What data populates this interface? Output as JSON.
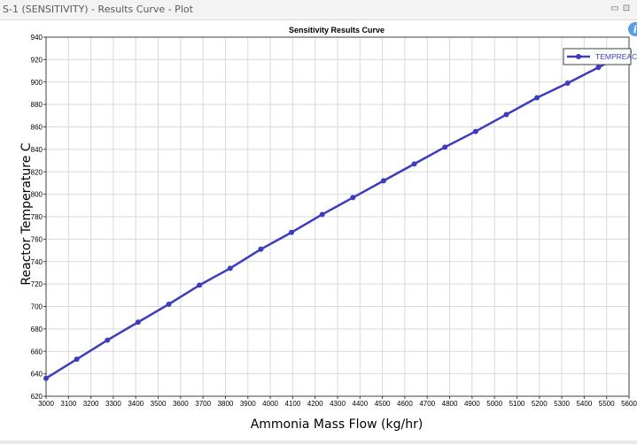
{
  "window": {
    "title": "S-1 (SENSITIVITY) - Results Curve - Plot",
    "restore_glyph": "▭",
    "maximize_glyph": "⊡"
  },
  "info_icon": {
    "glyph": "i",
    "icon": "info-icon",
    "color": "#5aa0e0"
  },
  "chart_data": {
    "type": "line",
    "title": "Sensitivity Results Curve",
    "xlabel": "Ammonia Mass Flow (kg/hr)",
    "ylabel": "Reactor Temperature C",
    "xlim": [
      3000,
      5600
    ],
    "ylim": [
      620,
      940
    ],
    "x_ticks": [
      3000,
      3100,
      3200,
      3300,
      3400,
      3500,
      3600,
      3700,
      3800,
      3900,
      4000,
      4100,
      4200,
      4300,
      4400,
      4500,
      4600,
      4700,
      4800,
      4900,
      5000,
      5100,
      5200,
      5300,
      5400,
      5500,
      5600
    ],
    "y_ticks": [
      620,
      640,
      660,
      680,
      700,
      720,
      740,
      760,
      780,
      800,
      820,
      840,
      860,
      880,
      900,
      920,
      940
    ],
    "grid": true,
    "legend_position": "top-right",
    "series": [
      {
        "name": "TEMPREAC C",
        "color": "#3c3cbf",
        "x": [
          3000,
          3136.8,
          3273.7,
          3410.5,
          3547.4,
          3684.2,
          3821.1,
          3957.9,
          4094.7,
          4231.6,
          4368.4,
          4505.3,
          4642.1,
          4778.9,
          4915.8,
          5052.6,
          5189.5,
          5326.3,
          5463.2,
          5600
        ],
        "y": [
          636,
          653,
          670,
          686,
          702,
          719,
          734,
          751,
          766,
          782,
          797,
          812,
          827,
          842,
          856,
          871,
          886,
          899,
          913,
          927
        ]
      }
    ]
  }
}
